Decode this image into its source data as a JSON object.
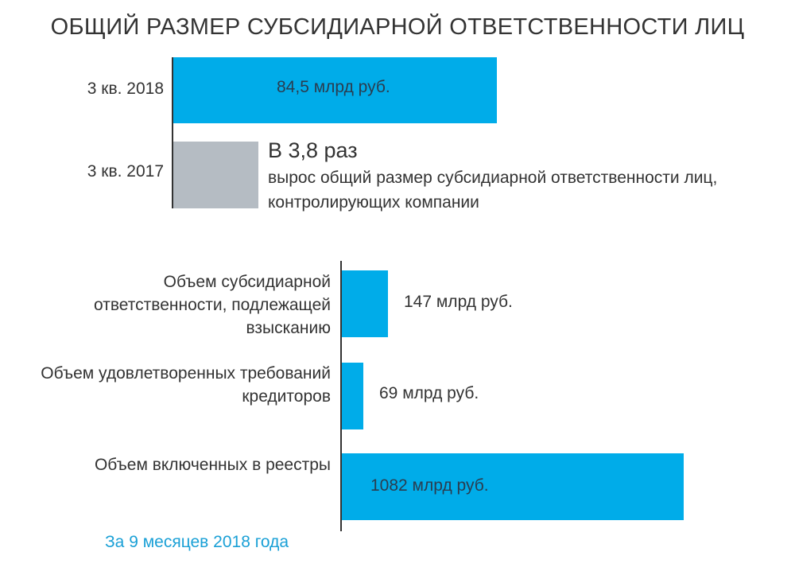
{
  "colors": {
    "primary": "#00ace9",
    "muted": "#b5bcc3",
    "footnote": "#1aa0d6"
  },
  "callout": {
    "headline": "В 3,8 раз",
    "text": "вырос общий размер субсидиарной ответственности лиц, контролирующих компании"
  },
  "footnote": "За 9 месяцев 2018 года",
  "chart_data": [
    {
      "type": "bar",
      "orientation": "horizontal",
      "title": "ОБЩИЙ РАЗМЕР СУБСИДИАРНОЙ ОТВЕТСТВЕННОСТИ ЛИЦ",
      "categories": [
        "3 кв. 2018",
        "3 кв. 2017"
      ],
      "values": [
        84.5,
        22.2
      ],
      "value_labels": [
        "84,5 млрд руб.",
        ""
      ],
      "xlabel": "",
      "ylabel": "",
      "xlim": [
        0,
        100
      ]
    },
    {
      "type": "bar",
      "orientation": "horizontal",
      "title": "",
      "categories": [
        "Объем субсидиарной ответственности, подлежащей взысканию",
        "Объем удовлетворенных требований кредиторов",
        "Объем включенных в реестры"
      ],
      "values": [
        147,
        69,
        1082
      ],
      "value_labels": [
        "147 млрд руб.",
        "69 млрд руб.",
        "1082 млрд руб."
      ],
      "xlabel": "",
      "ylabel": "",
      "xlim": [
        0,
        1260
      ]
    }
  ]
}
